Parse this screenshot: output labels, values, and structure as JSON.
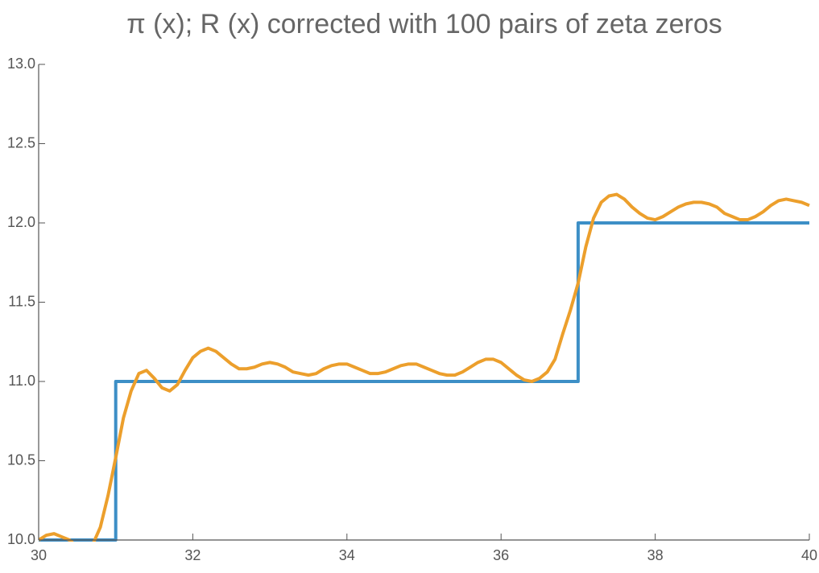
{
  "chart_data": {
    "type": "line",
    "title": "π (x); R (x) corrected with 100 pairs of zeta zeros",
    "xlim": [
      30,
      40
    ],
    "xticks": [
      30,
      32,
      34,
      36,
      38,
      40
    ],
    "ylim": [
      10,
      13
    ],
    "yticks": [
      {
        "value": 10,
        "label": "10.0"
      },
      10.5,
      {
        "value": 11,
        "label": "11.0"
      },
      11.5,
      {
        "value": 12,
        "label": "12.0"
      },
      12.5,
      {
        "value": 13,
        "label": "13.0"
      }
    ],
    "series": [
      {
        "color": "#3d8fc6",
        "x": [
          30,
          31,
          31,
          37,
          37,
          40
        ],
        "values": [
          10,
          10,
          11,
          11,
          12,
          12
        ]
      },
      {
        "color": "#ec9f2c",
        "x": [
          30,
          30.1,
          30.2,
          30.3,
          30.4,
          30.5,
          30.6,
          30.7,
          30.8,
          30.9,
          31,
          31.1,
          31.2,
          31.3,
          31.4,
          31.5,
          31.6,
          31.7,
          31.8,
          31.9,
          32,
          32.1,
          32.2,
          32.3,
          32.4,
          32.5,
          32.6,
          32.7,
          32.8,
          32.9,
          33,
          33.1,
          33.2,
          33.3,
          33.4,
          33.5,
          33.6,
          33.7,
          33.8,
          33.9,
          34,
          34.1,
          34.2,
          34.3,
          34.4,
          34.5,
          34.6,
          34.7,
          34.8,
          34.9,
          35,
          35.1,
          35.2,
          35.3,
          35.4,
          35.5,
          35.6,
          35.7,
          35.8,
          35.9,
          36,
          36.1,
          36.2,
          36.3,
          36.4,
          36.5,
          36.6,
          36.7,
          36.8,
          36.9,
          37,
          37.1,
          37.2,
          37.3,
          37.4,
          37.5,
          37.6,
          37.7,
          37.8,
          37.9,
          38,
          38.1,
          38.2,
          38.3,
          38.4,
          38.5,
          38.6,
          38.7,
          38.8,
          38.9,
          39,
          39.1,
          39.2,
          39.3,
          39.4,
          39.5,
          39.6,
          39.7,
          39.8,
          39.9,
          40
        ],
        "values": [
          10,
          10.03,
          10.04,
          10.02,
          10,
          9.96,
          9.95,
          9.97,
          10.08,
          10.28,
          10.52,
          10.77,
          10.94,
          11.05,
          11.07,
          11.02,
          10.96,
          10.94,
          10.98,
          11.07,
          11.15,
          11.19,
          11.21,
          11.19,
          11.15,
          11.11,
          11.08,
          11.08,
          11.09,
          11.11,
          11.12,
          11.11,
          11.09,
          11.06,
          11.05,
          11.04,
          11.05,
          11.08,
          11.1,
          11.11,
          11.11,
          11.09,
          11.07,
          11.05,
          11.05,
          11.06,
          11.08,
          11.1,
          11.11,
          11.11,
          11.09,
          11.07,
          11.05,
          11.04,
          11.04,
          11.06,
          11.09,
          11.12,
          11.14,
          11.14,
          11.12,
          11.08,
          11.04,
          11.01,
          11,
          11.02,
          11.06,
          11.14,
          11.3,
          11.45,
          11.62,
          11.85,
          12.03,
          12.13,
          12.17,
          12.18,
          12.15,
          12.1,
          12.06,
          12.03,
          12.02,
          12.04,
          12.07,
          12.1,
          12.12,
          12.13,
          12.13,
          12.12,
          12.1,
          12.06,
          12.04,
          12.02,
          12.02,
          12.04,
          12.07,
          12.11,
          12.14,
          12.15,
          12.14,
          12.13,
          12.11
        ]
      }
    ]
  }
}
